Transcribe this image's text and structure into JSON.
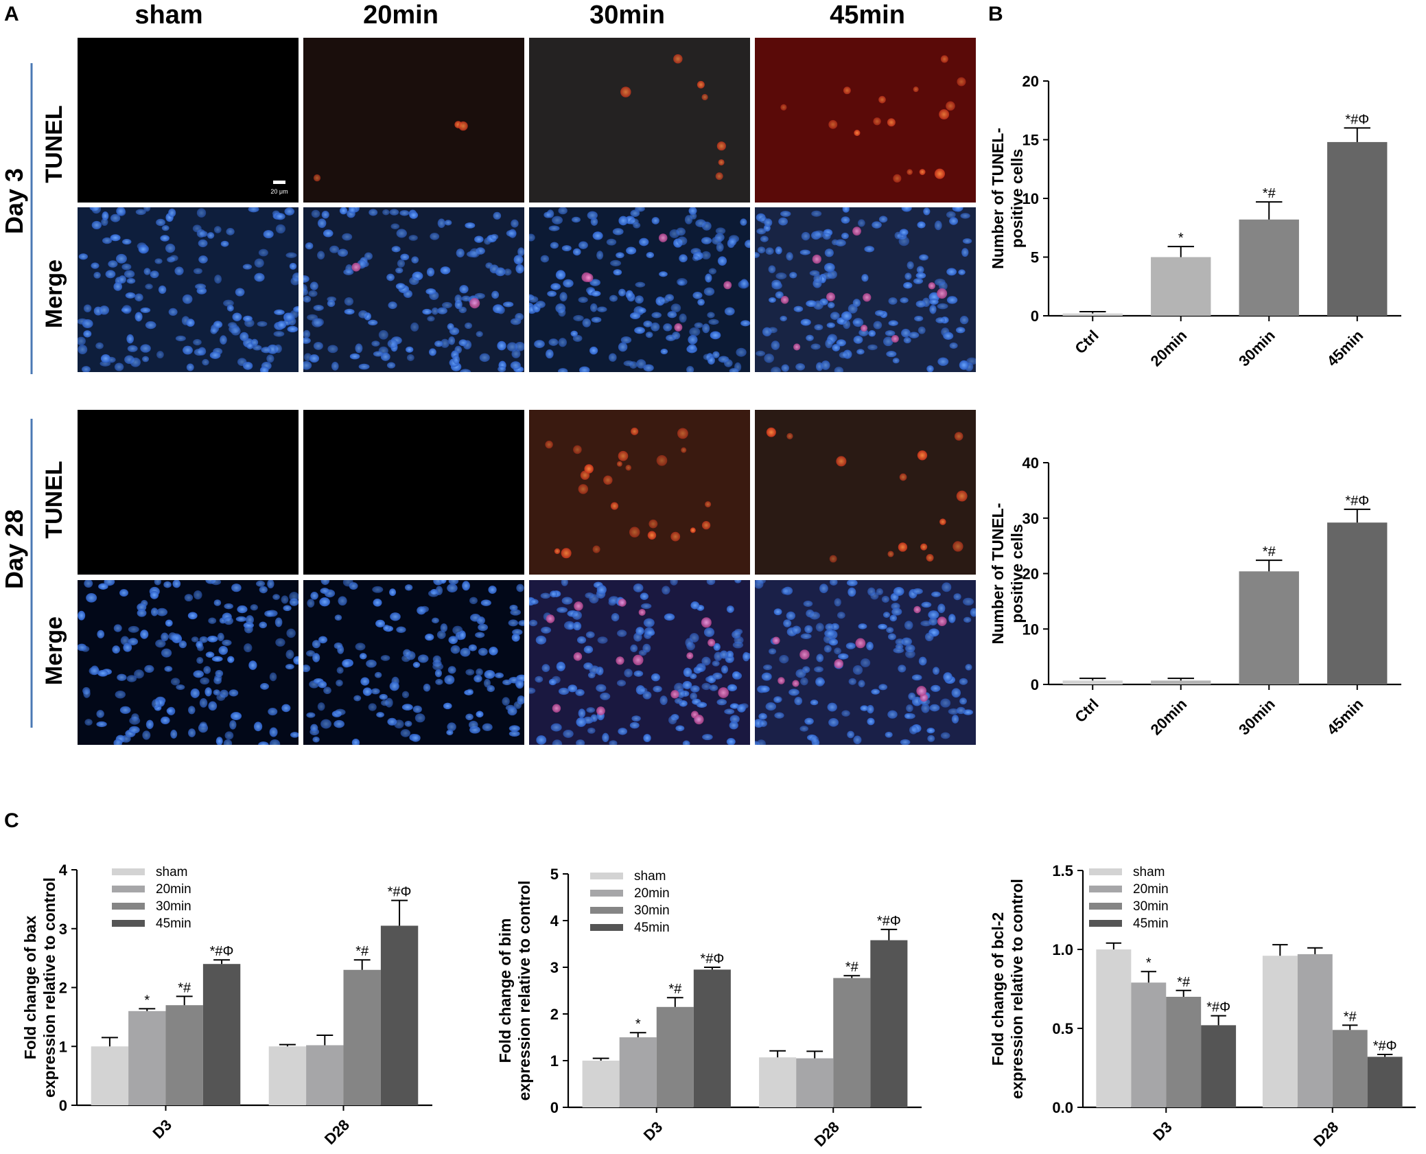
{
  "panel_letters": {
    "a": "A",
    "b": "B",
    "c": "C"
  },
  "micrographs": {
    "columns": [
      "sham",
      "20min",
      "30min",
      "45min"
    ],
    "days": [
      {
        "label": "Day 3",
        "rows": [
          "TUNEL",
          "Merge"
        ]
      },
      {
        "label": "Day 28",
        "rows": [
          "TUNEL",
          "Merge"
        ]
      }
    ],
    "scale_bar": "20 μm"
  },
  "colors": {
    "sham": "#d3d3d3",
    "20min": "#a6a6a8",
    "30min": "#858585",
    "45min": "#555555",
    "tunel_bg": "#000000",
    "tunel_signal": "#e0401a",
    "merge_bg": "#0a1a3a",
    "nucleus": "#3a7ae0",
    "divider": "#4a78b4"
  },
  "chart_data": [
    {
      "type": "bar",
      "panel": "B",
      "categories": [
        "Ctrl",
        "20min",
        "30min",
        "45min"
      ],
      "values": [
        0.2,
        5.0,
        8.2,
        14.8
      ],
      "errors": [
        0.15,
        0.9,
        1.5,
        1.2
      ],
      "annotations": [
        "",
        "*",
        "*#",
        "*#Φ"
      ],
      "colors": [
        "#d3d3d3",
        "#b4b4b4",
        "#858585",
        "#666666"
      ],
      "ylabel_lines": [
        "Number of TUNEL-",
        "positive  cells"
      ],
      "ylim": [
        0,
        20
      ],
      "yticks": [
        0,
        5,
        10,
        15,
        20
      ]
    },
    {
      "type": "bar",
      "panel": "B",
      "categories": [
        "Ctrl",
        "20min",
        "30min",
        "45min"
      ],
      "values": [
        0.7,
        0.7,
        20.4,
        29.2
      ],
      "errors": [
        0.4,
        0.4,
        2.0,
        2.4
      ],
      "annotations": [
        "",
        "",
        "*#",
        "*#Φ"
      ],
      "colors": [
        "#d3d3d3",
        "#b4b4b4",
        "#858585",
        "#666666"
      ],
      "ylabel_lines": [
        "Number of TUNEL-",
        "positive  cells"
      ],
      "ylim": [
        0,
        40
      ],
      "yticks": [
        0,
        10,
        20,
        30,
        40
      ]
    },
    {
      "type": "bar",
      "panel": "C",
      "categories": [
        "D3",
        "D28"
      ],
      "series": [
        {
          "name": "sham",
          "values": [
            1.0,
            1.0
          ],
          "errors": [
            0.15,
            0.03
          ],
          "annotations": [
            "",
            ""
          ]
        },
        {
          "name": "20min",
          "values": [
            1.6,
            1.02
          ],
          "errors": [
            0.04,
            0.17
          ],
          "annotations": [
            "*",
            ""
          ]
        },
        {
          "name": "30min",
          "values": [
            1.7,
            2.3
          ],
          "errors": [
            0.15,
            0.17
          ],
          "annotations": [
            "*#",
            "*#"
          ]
        },
        {
          "name": "45min",
          "values": [
            2.4,
            3.05
          ],
          "errors": [
            0.07,
            0.43
          ],
          "annotations": [
            "*#Φ",
            "*#Φ"
          ]
        }
      ],
      "ylabel_lines": [
        "Fold change of bax",
        "expression relative to control"
      ],
      "ylim": [
        0,
        4
      ],
      "yticks": [
        0,
        1,
        2,
        3,
        4
      ],
      "ytick_labels": [
        "0",
        "1",
        "2",
        "3",
        "4"
      ]
    },
    {
      "type": "bar",
      "panel": "C",
      "categories": [
        "D3",
        "D28"
      ],
      "series": [
        {
          "name": "sham",
          "values": [
            1.0,
            1.07
          ],
          "errors": [
            0.05,
            0.14
          ],
          "annotations": [
            "",
            ""
          ]
        },
        {
          "name": "20min",
          "values": [
            1.5,
            1.05
          ],
          "errors": [
            0.1,
            0.15
          ],
          "annotations": [
            "*",
            ""
          ]
        },
        {
          "name": "30min",
          "values": [
            2.15,
            2.77
          ],
          "errors": [
            0.2,
            0.05
          ],
          "annotations": [
            "*#",
            "*#"
          ]
        },
        {
          "name": "45min",
          "values": [
            2.95,
            3.58
          ],
          "errors": [
            0.05,
            0.23
          ],
          "annotations": [
            "*#Φ",
            "*#Φ"
          ]
        }
      ],
      "ylabel_lines": [
        "Fold change of bim",
        "expression relative to control"
      ],
      "ylim": [
        0,
        5
      ],
      "yticks": [
        0,
        1,
        2,
        3,
        4,
        5
      ],
      "ytick_labels": [
        "0",
        "1",
        "2",
        "3",
        "4",
        "5"
      ]
    },
    {
      "type": "bar",
      "panel": "C",
      "categories": [
        "D3",
        "D28"
      ],
      "series": [
        {
          "name": "sham",
          "values": [
            1.0,
            0.96
          ],
          "errors": [
            0.04,
            0.07
          ],
          "annotations": [
            "",
            ""
          ]
        },
        {
          "name": "20min",
          "values": [
            0.79,
            0.97
          ],
          "errors": [
            0.07,
            0.04
          ],
          "annotations": [
            "*",
            ""
          ]
        },
        {
          "name": "30min",
          "values": [
            0.7,
            0.49
          ],
          "errors": [
            0.04,
            0.03
          ],
          "annotations": [
            "*#",
            "*#"
          ]
        },
        {
          "name": "45min",
          "values": [
            0.52,
            0.32
          ],
          "errors": [
            0.06,
            0.015
          ],
          "annotations": [
            "*#Φ",
            "*#Φ"
          ]
        }
      ],
      "ylabel_lines": [
        "Fold change of bcl-2",
        "expression relative to control"
      ],
      "ylim": [
        0,
        1.5
      ],
      "yticks": [
        0,
        0.5,
        1.0,
        1.5
      ],
      "ytick_labels": [
        "0.0",
        "0.5",
        "1.0",
        "1.5"
      ]
    }
  ]
}
